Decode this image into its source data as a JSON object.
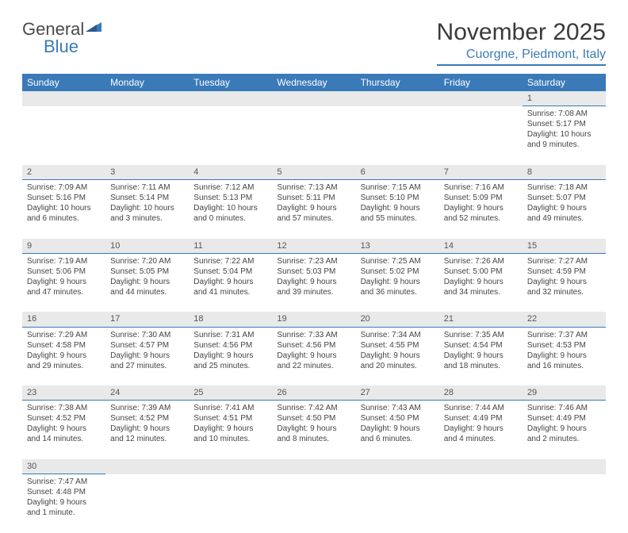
{
  "brand": {
    "part1": "General",
    "part2": "Blue"
  },
  "title": "November 2025",
  "location": "Cuorgne, Piedmont, Italy",
  "colors": {
    "header_bg": "#3a7ab8",
    "header_text": "#ffffff",
    "daynum_bg": "#e9e9e9",
    "daynum_border": "#3a7ab8",
    "body_text": "#444444",
    "title_text": "#3a3a3a"
  },
  "weekdays": [
    "Sunday",
    "Monday",
    "Tuesday",
    "Wednesday",
    "Thursday",
    "Friday",
    "Saturday"
  ],
  "weeks": [
    {
      "days": [
        null,
        null,
        null,
        null,
        null,
        null,
        {
          "n": "1",
          "sr": "Sunrise: 7:08 AM",
          "ss": "Sunset: 5:17 PM",
          "dl": "Daylight: 10 hours and 9 minutes."
        }
      ]
    },
    {
      "days": [
        {
          "n": "2",
          "sr": "Sunrise: 7:09 AM",
          "ss": "Sunset: 5:16 PM",
          "dl": "Daylight: 10 hours and 6 minutes."
        },
        {
          "n": "3",
          "sr": "Sunrise: 7:11 AM",
          "ss": "Sunset: 5:14 PM",
          "dl": "Daylight: 10 hours and 3 minutes."
        },
        {
          "n": "4",
          "sr": "Sunrise: 7:12 AM",
          "ss": "Sunset: 5:13 PM",
          "dl": "Daylight: 10 hours and 0 minutes."
        },
        {
          "n": "5",
          "sr": "Sunrise: 7:13 AM",
          "ss": "Sunset: 5:11 PM",
          "dl": "Daylight: 9 hours and 57 minutes."
        },
        {
          "n": "6",
          "sr": "Sunrise: 7:15 AM",
          "ss": "Sunset: 5:10 PM",
          "dl": "Daylight: 9 hours and 55 minutes."
        },
        {
          "n": "7",
          "sr": "Sunrise: 7:16 AM",
          "ss": "Sunset: 5:09 PM",
          "dl": "Daylight: 9 hours and 52 minutes."
        },
        {
          "n": "8",
          "sr": "Sunrise: 7:18 AM",
          "ss": "Sunset: 5:07 PM",
          "dl": "Daylight: 9 hours and 49 minutes."
        }
      ]
    },
    {
      "days": [
        {
          "n": "9",
          "sr": "Sunrise: 7:19 AM",
          "ss": "Sunset: 5:06 PM",
          "dl": "Daylight: 9 hours and 47 minutes."
        },
        {
          "n": "10",
          "sr": "Sunrise: 7:20 AM",
          "ss": "Sunset: 5:05 PM",
          "dl": "Daylight: 9 hours and 44 minutes."
        },
        {
          "n": "11",
          "sr": "Sunrise: 7:22 AM",
          "ss": "Sunset: 5:04 PM",
          "dl": "Daylight: 9 hours and 41 minutes."
        },
        {
          "n": "12",
          "sr": "Sunrise: 7:23 AM",
          "ss": "Sunset: 5:03 PM",
          "dl": "Daylight: 9 hours and 39 minutes."
        },
        {
          "n": "13",
          "sr": "Sunrise: 7:25 AM",
          "ss": "Sunset: 5:02 PM",
          "dl": "Daylight: 9 hours and 36 minutes."
        },
        {
          "n": "14",
          "sr": "Sunrise: 7:26 AM",
          "ss": "Sunset: 5:00 PM",
          "dl": "Daylight: 9 hours and 34 minutes."
        },
        {
          "n": "15",
          "sr": "Sunrise: 7:27 AM",
          "ss": "Sunset: 4:59 PM",
          "dl": "Daylight: 9 hours and 32 minutes."
        }
      ]
    },
    {
      "days": [
        {
          "n": "16",
          "sr": "Sunrise: 7:29 AM",
          "ss": "Sunset: 4:58 PM",
          "dl": "Daylight: 9 hours and 29 minutes."
        },
        {
          "n": "17",
          "sr": "Sunrise: 7:30 AM",
          "ss": "Sunset: 4:57 PM",
          "dl": "Daylight: 9 hours and 27 minutes."
        },
        {
          "n": "18",
          "sr": "Sunrise: 7:31 AM",
          "ss": "Sunset: 4:56 PM",
          "dl": "Daylight: 9 hours and 25 minutes."
        },
        {
          "n": "19",
          "sr": "Sunrise: 7:33 AM",
          "ss": "Sunset: 4:56 PM",
          "dl": "Daylight: 9 hours and 22 minutes."
        },
        {
          "n": "20",
          "sr": "Sunrise: 7:34 AM",
          "ss": "Sunset: 4:55 PM",
          "dl": "Daylight: 9 hours and 20 minutes."
        },
        {
          "n": "21",
          "sr": "Sunrise: 7:35 AM",
          "ss": "Sunset: 4:54 PM",
          "dl": "Daylight: 9 hours and 18 minutes."
        },
        {
          "n": "22",
          "sr": "Sunrise: 7:37 AM",
          "ss": "Sunset: 4:53 PM",
          "dl": "Daylight: 9 hours and 16 minutes."
        }
      ]
    },
    {
      "days": [
        {
          "n": "23",
          "sr": "Sunrise: 7:38 AM",
          "ss": "Sunset: 4:52 PM",
          "dl": "Daylight: 9 hours and 14 minutes."
        },
        {
          "n": "24",
          "sr": "Sunrise: 7:39 AM",
          "ss": "Sunset: 4:52 PM",
          "dl": "Daylight: 9 hours and 12 minutes."
        },
        {
          "n": "25",
          "sr": "Sunrise: 7:41 AM",
          "ss": "Sunset: 4:51 PM",
          "dl": "Daylight: 9 hours and 10 minutes."
        },
        {
          "n": "26",
          "sr": "Sunrise: 7:42 AM",
          "ss": "Sunset: 4:50 PM",
          "dl": "Daylight: 9 hours and 8 minutes."
        },
        {
          "n": "27",
          "sr": "Sunrise: 7:43 AM",
          "ss": "Sunset: 4:50 PM",
          "dl": "Daylight: 9 hours and 6 minutes."
        },
        {
          "n": "28",
          "sr": "Sunrise: 7:44 AM",
          "ss": "Sunset: 4:49 PM",
          "dl": "Daylight: 9 hours and 4 minutes."
        },
        {
          "n": "29",
          "sr": "Sunrise: 7:46 AM",
          "ss": "Sunset: 4:49 PM",
          "dl": "Daylight: 9 hours and 2 minutes."
        }
      ]
    },
    {
      "days": [
        {
          "n": "30",
          "sr": "Sunrise: 7:47 AM",
          "ss": "Sunset: 4:48 PM",
          "dl": "Daylight: 9 hours and 1 minute."
        },
        null,
        null,
        null,
        null,
        null,
        null
      ]
    }
  ]
}
